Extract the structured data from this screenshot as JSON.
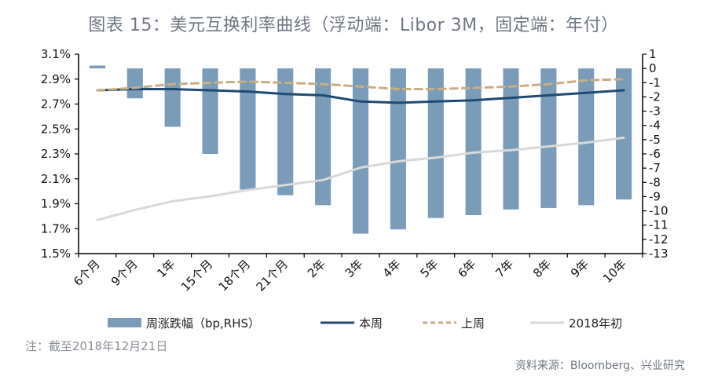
{
  "title": "图表 15：美元互换利率曲线（浮动端：Libor 3M，固定端：年付）",
  "note": "注：截至2018年12月21日",
  "source": "资料来源：Bloomberg、兴业研究",
  "colors": {
    "bar": "#7a9cb8",
    "this_week": "#1f4a72",
    "last_week": "#c9ae84",
    "start_2018": "#d9d9d9",
    "axis": "#000000"
  },
  "chart_data": {
    "type": "bar+line",
    "title": "图表 15：美元互换利率曲线（浮动端：Libor 3M，固定端：年付）",
    "categories": [
      "6个月",
      "9个月",
      "1年",
      "15个月",
      "18个月",
      "21个月",
      "2年",
      "3年",
      "4年",
      "5年",
      "6年",
      "7年",
      "8年",
      "9年",
      "10年"
    ],
    "left_axis": {
      "ylim": [
        1.5,
        3.1
      ],
      "ticks": [
        "3.1%",
        "2.9%",
        "2.7%",
        "2.5%",
        "2.3%",
        "2.1%",
        "1.9%",
        "1.7%",
        "1.5%"
      ],
      "tick_values": [
        3.1,
        2.9,
        2.7,
        2.5,
        2.3,
        2.1,
        1.9,
        1.7,
        1.5
      ]
    },
    "right_axis": {
      "ylim": [
        -13,
        1
      ],
      "ticks": [
        "1",
        "0",
        "-1",
        "-2",
        "-3",
        "-4",
        "-5",
        "-6",
        "-7",
        "-8",
        "-9",
        "-10",
        "-11",
        "-12",
        "-13"
      ],
      "tick_values": [
        1,
        0,
        -1,
        -2,
        -3,
        -4,
        -5,
        -6,
        -7,
        -8,
        -9,
        -10,
        -11,
        -12,
        -13
      ]
    },
    "series": [
      {
        "name": "周涨跌幅（bp,RHS）",
        "type": "bar",
        "axis": "right",
        "values": [
          0.2,
          -2.1,
          -4.1,
          -6.0,
          -8.5,
          -8.9,
          -9.6,
          -11.6,
          -11.3,
          -10.5,
          -10.3,
          -9.9,
          -9.8,
          -9.6,
          -9.2
        ]
      },
      {
        "name": "本周",
        "type": "line",
        "axis": "left",
        "style": "solid",
        "values": [
          2.81,
          2.82,
          2.82,
          2.81,
          2.8,
          2.78,
          2.77,
          2.72,
          2.71,
          2.72,
          2.73,
          2.75,
          2.77,
          2.79,
          2.81
        ]
      },
      {
        "name": "上周",
        "type": "line",
        "axis": "left",
        "style": "dashed",
        "values": [
          2.81,
          2.83,
          2.86,
          2.87,
          2.88,
          2.87,
          2.86,
          2.84,
          2.82,
          2.82,
          2.83,
          2.84,
          2.86,
          2.89,
          2.9
        ]
      },
      {
        "name": "2018年初",
        "type": "line",
        "axis": "left",
        "style": "solid",
        "values": [
          1.77,
          1.85,
          1.92,
          1.96,
          2.01,
          2.05,
          2.09,
          2.19,
          2.24,
          2.27,
          2.31,
          2.33,
          2.36,
          2.39,
          2.43
        ]
      }
    ],
    "legend_position": "bottom",
    "grid": false
  }
}
